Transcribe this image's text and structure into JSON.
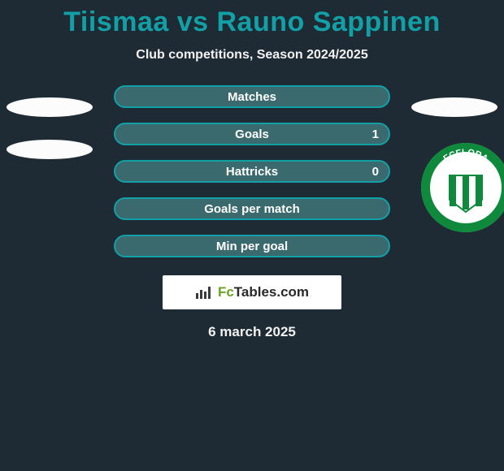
{
  "title": {
    "text": "Tiismaa vs Rauno Sappinen",
    "color": "#12a0a6"
  },
  "subtitle": "Club competitions, Season 2024/2025",
  "stat_bar": {
    "border_color": "#12a0a6",
    "fill_color": "#3a6a6e"
  },
  "stats": [
    {
      "label": "Matches",
      "right_value": ""
    },
    {
      "label": "Goals",
      "right_value": "1"
    },
    {
      "label": "Hattricks",
      "right_value": "0"
    },
    {
      "label": "Goals per match",
      "right_value": ""
    },
    {
      "label": "Min per goal",
      "right_value": ""
    }
  ],
  "crest": {
    "ring_color": "#ffffff",
    "band_color": "#0f8a3d",
    "stripe_color": "#0f8a3d",
    "text": "FCFLORA",
    "text_color": "#ffffff"
  },
  "footer": {
    "brand_prefix": "Fc",
    "brand_rest": "Tables.com",
    "accent_color": "#6aa322"
  },
  "date": "6 march 2025"
}
